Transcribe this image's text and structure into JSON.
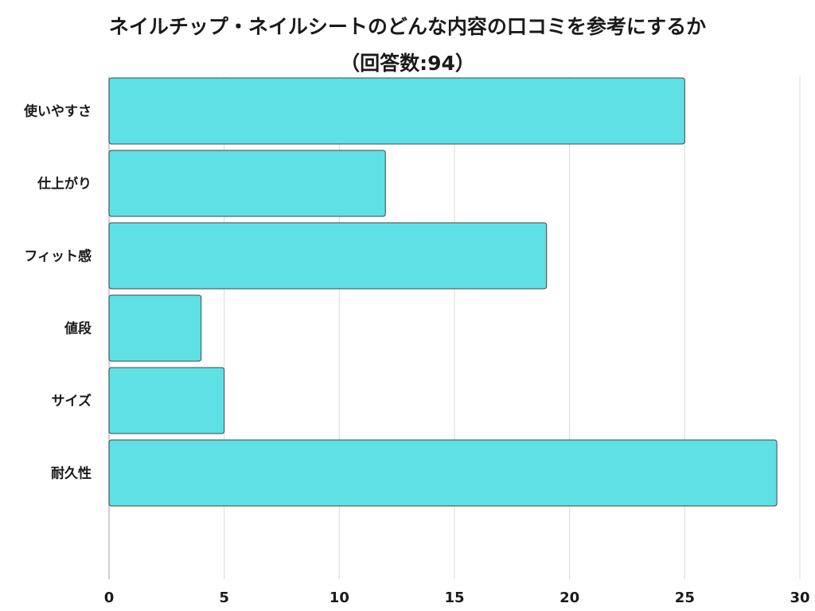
{
  "chart_data": {
    "type": "bar",
    "orientation": "horizontal",
    "title": "ネイルチップ・ネイルシートのどんな内容の口コミを参考にするか",
    "subtitle": "（回答数:94）",
    "categories": [
      "使いやすさ",
      "仕上がり",
      "フィット感",
      "値段",
      "サイズ",
      "耐久性"
    ],
    "values": [
      25,
      12,
      19,
      4,
      5,
      29
    ],
    "xlim": [
      0,
      30
    ],
    "xticks": [
      0,
      5,
      10,
      15,
      20,
      25,
      30
    ],
    "xlabel": "",
    "ylabel": "",
    "grid": true,
    "legend": "none",
    "bar_color": "#5ee0e5",
    "grid_color": "#d9d9d9",
    "axis_color": "#bfbfbf"
  }
}
